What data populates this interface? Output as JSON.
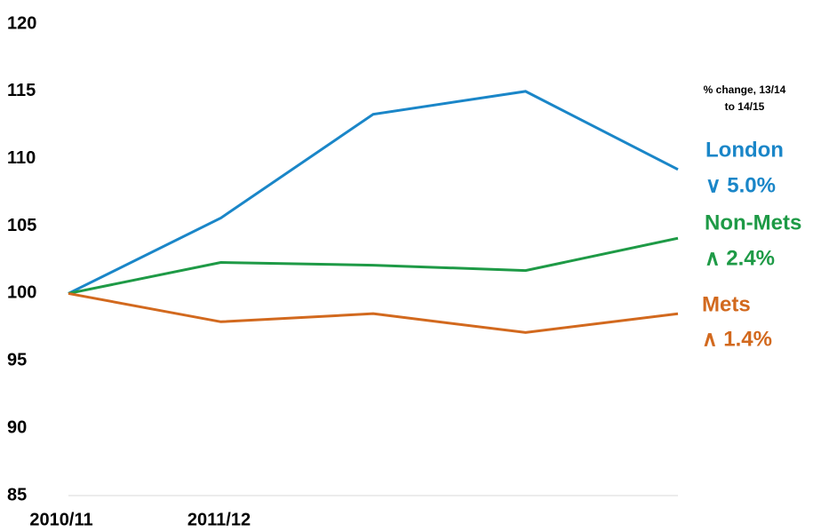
{
  "chart_data": {
    "type": "line",
    "categories": [
      "2010/11",
      "2011/12",
      null,
      null,
      null
    ],
    "series": [
      {
        "name": "London",
        "color": "#1a86c8",
        "values": [
          100,
          105.6,
          113.3,
          115,
          109.2
        ],
        "change": "∨ 5.0%"
      },
      {
        "name": "Non-Mets",
        "color": "#1e9a46",
        "values": [
          100,
          102.3,
          102.1,
          101.7,
          104.1
        ],
        "change": "∧ 2.4%"
      },
      {
        "name": "Mets",
        "color": "#d2691e",
        "values": [
          100,
          97.9,
          98.5,
          97.1,
          98.5
        ],
        "change": "∧ 1.4%"
      }
    ],
    "annotation": [
      "% change, 13/14",
      "to 14/15"
    ],
    "ylim": [
      85,
      120
    ],
    "yticks": [
      85,
      90,
      95,
      100,
      105,
      110,
      115,
      120
    ],
    "grid": false
  }
}
